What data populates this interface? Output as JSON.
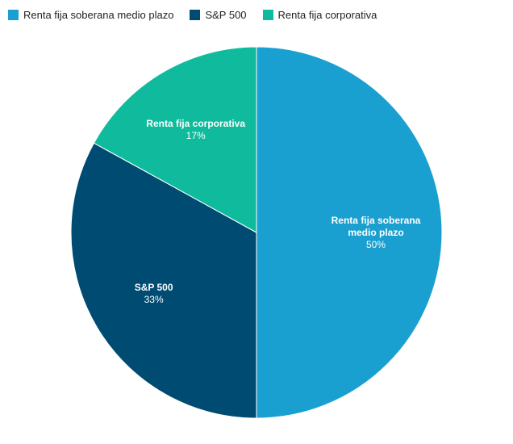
{
  "chart_data": {
    "type": "pie",
    "categories": [
      "Renta fija soberana medio plazo",
      "S&P 500",
      "Renta fija corporativa"
    ],
    "values": [
      50,
      33,
      17
    ],
    "value_labels": [
      "50%",
      "33%",
      "17%"
    ],
    "slice_label_lines": [
      [
        "Renta fija soberana",
        "medio plazo"
      ],
      [
        "S&P 500"
      ],
      [
        "Renta fija corporativa"
      ]
    ],
    "colors": [
      "#1aa0d0",
      "#004b72",
      "#0fbb9c"
    ],
    "legend_position": "top-left",
    "start_angle": "top, clockwise"
  }
}
